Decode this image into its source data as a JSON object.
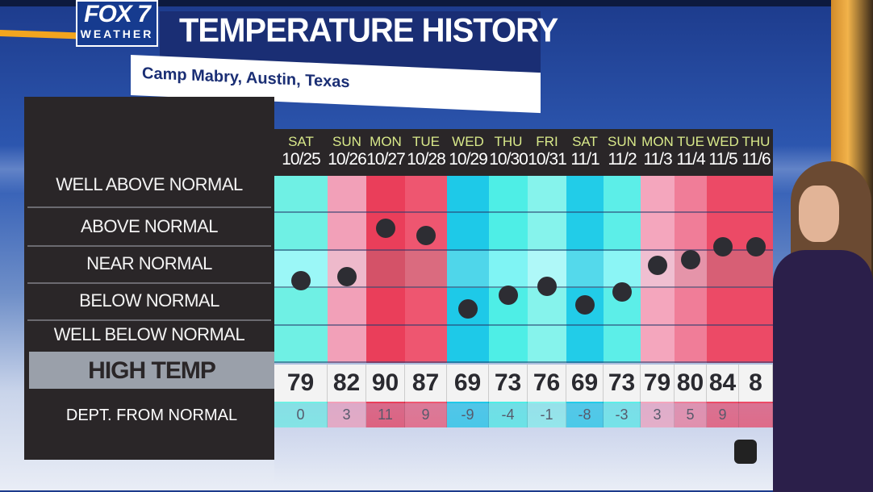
{
  "header": {
    "logo_main": "FOX 7",
    "logo_sub": "WEATHER",
    "title": "TEMPERATURE HISTORY",
    "subtitle": "Camp Mabry, Austin, Texas"
  },
  "row_labels": {
    "well_above": "WELL ABOVE NORMAL",
    "above": "ABOVE NORMAL",
    "near": "NEAR NORMAL",
    "below": "BELOW NORMAL",
    "well_below": "WELL BELOW NORMAL",
    "high_temp": "HIGH TEMP",
    "dept": "DEPT. FROM NORMAL"
  },
  "days": [
    {
      "day": "SAT",
      "date": "10/25",
      "high": "79",
      "dept": "0",
      "color": "#6ff0e4",
      "dep_color": "#6ff0e4"
    },
    {
      "day": "SUN",
      "date": "10/26",
      "high": "82",
      "dept": "3",
      "color": "#f2a0b8",
      "dep_color": "#f2a0b8"
    },
    {
      "day": "MON",
      "date": "10/27",
      "high": "90",
      "dept": "11",
      "color": "#ea3e5a",
      "dep_color": "#ea3e5a"
    },
    {
      "day": "TUE",
      "date": "10/28",
      "high": "87",
      "dept": "9",
      "color": "#ee5670",
      "dep_color": "#ee5670"
    },
    {
      "day": "WED",
      "date": "10/29",
      "high": "69",
      "dept": "-9",
      "color": "#1ec9e8",
      "dep_color": "#1ec9e8"
    },
    {
      "day": "THU",
      "date": "10/30",
      "high": "73",
      "dept": "-4",
      "color": "#4eeee6",
      "dep_color": "#4eeee6"
    },
    {
      "day": "FRI",
      "date": "10/31",
      "high": "76",
      "dept": "-1",
      "color": "#86f3ec",
      "dep_color": "#86f3ec"
    },
    {
      "day": "SAT",
      "date": "11/1",
      "high": "69",
      "dept": "-8",
      "color": "#22cce8",
      "dep_color": "#22cce8"
    },
    {
      "day": "SUN",
      "date": "11/2",
      "high": "73",
      "dept": "-3",
      "color": "#5ceee8",
      "dep_color": "#5ceee8"
    },
    {
      "day": "MON",
      "date": "11/3",
      "high": "79",
      "dept": "3",
      "color": "#f4a6bd",
      "dep_color": "#f4a6bd"
    },
    {
      "day": "TUE",
      "date": "11/4",
      "high": "80",
      "dept": "5",
      "color": "#f07d98",
      "dep_color": "#f07d98"
    },
    {
      "day": "WED",
      "date": "11/5",
      "high": "84",
      "dept": "9",
      "color": "#ec4a66",
      "dep_color": "#ec4a66"
    },
    {
      "day": "THU",
      "date": "11/6",
      "high": "8",
      "dept": "",
      "color": "#ec4a66",
      "dep_color": "#ec4a66"
    }
  ],
  "chart_data": {
    "type": "table",
    "title": "TEMPERATURE HISTORY",
    "subtitle": "Camp Mabry, Austin, Texas",
    "categories": [
      "SAT 10/25",
      "SUN 10/26",
      "MON 10/27",
      "TUE 10/28",
      "WED 10/29",
      "THU 10/30",
      "FRI 10/31",
      "SAT 11/1",
      "SUN 11/2",
      "MON 11/3",
      "TUE 11/4",
      "WED 11/5",
      "THU 11/6"
    ],
    "series": [
      {
        "name": "HIGH TEMP",
        "values": [
          79,
          82,
          90,
          87,
          69,
          73,
          76,
          69,
          73,
          79,
          80,
          84,
          null
        ]
      },
      {
        "name": "DEPT. FROM NORMAL",
        "values": [
          0,
          3,
          11,
          9,
          -9,
          -4,
          -1,
          -8,
          -3,
          3,
          5,
          9,
          null
        ]
      }
    ],
    "ylabel_categories": [
      "WELL ABOVE NORMAL",
      "ABOVE NORMAL",
      "NEAR NORMAL",
      "BELOW NORMAL",
      "WELL BELOW NORMAL"
    ],
    "dot_level_fraction": [
      0.56,
      0.54,
      0.28,
      0.32,
      0.71,
      0.64,
      0.59,
      0.69,
      0.62,
      0.48,
      0.45,
      0.38,
      0.38
    ]
  },
  "colors": {
    "panel_bg": "#2a2628",
    "title_bar": "#1a2e74",
    "accent_orange": "#f2a51e",
    "day_label": "#d9e98a"
  }
}
